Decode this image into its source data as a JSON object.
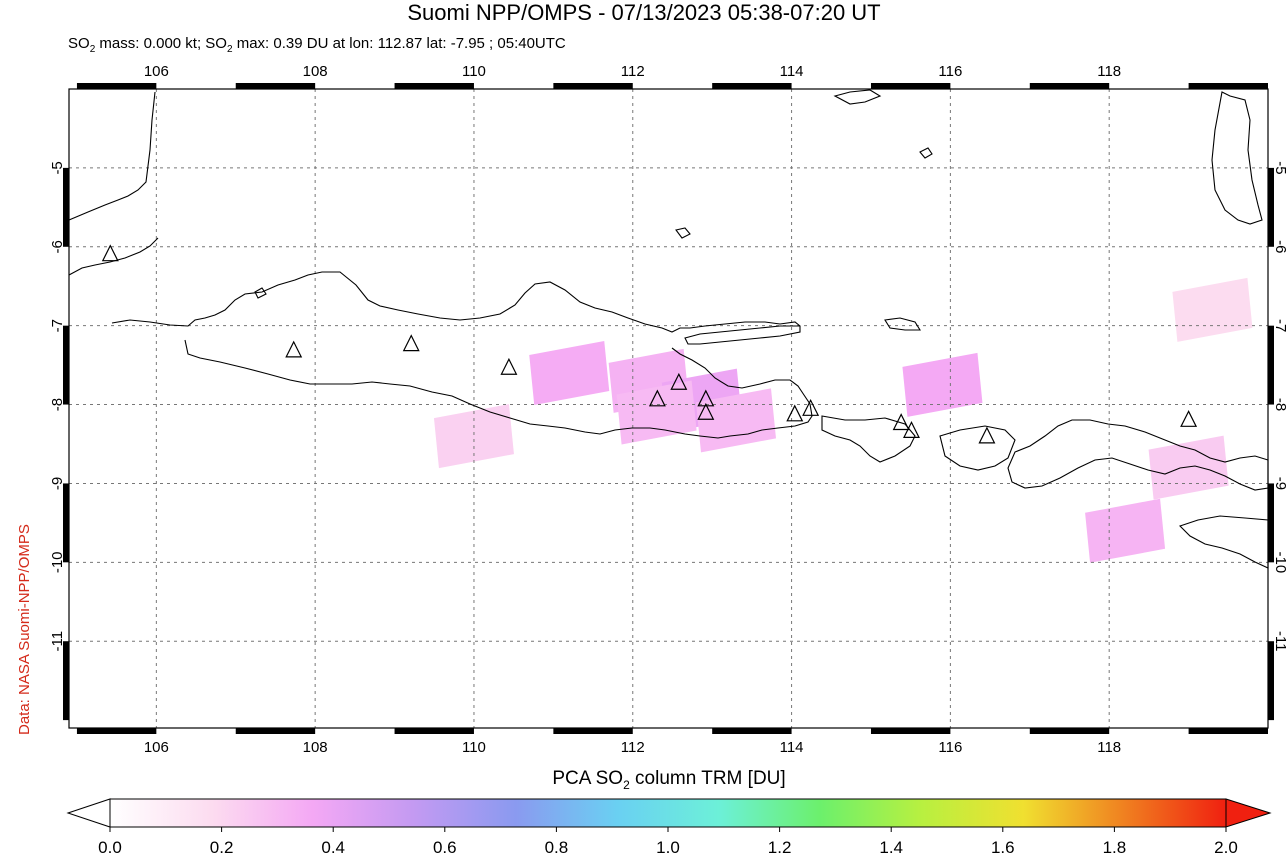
{
  "title": "Suomi NPP/OMPS - 07/13/2023 05:38-07:20 UT",
  "subtitle": {
    "part1": "SO",
    "sub1": "2",
    "part2": " mass: 0.000 kt; SO",
    "sub2": "2",
    "part3": " max: 0.39 DU at lon: 112.87 lat: -7.95 ; 05:40UTC"
  },
  "credit": "Data: NASA Suomi-NPP/OMPS",
  "colorbar_title": {
    "part1": "PCA SO",
    "sub": "2",
    "part2": " column TRM [DU]"
  },
  "map": {
    "lon_range": [
      104.9,
      120.0
    ],
    "lat_range": [
      -12.1,
      -4.0
    ],
    "x_ticks": [
      "106",
      "108",
      "110",
      "112",
      "114",
      "116",
      "118"
    ],
    "y_ticks": [
      "-5",
      "-6",
      "-7",
      "-8",
      "-9",
      "-10",
      "-11"
    ],
    "volcanoes": [
      {
        "lon": 105.42,
        "lat": -6.1
      },
      {
        "lon": 107.73,
        "lat": -7.32
      },
      {
        "lon": 109.21,
        "lat": -7.24
      },
      {
        "lon": 110.44,
        "lat": -7.54
      },
      {
        "lon": 112.31,
        "lat": -7.94
      },
      {
        "lon": 112.58,
        "lat": -7.73
      },
      {
        "lon": 112.92,
        "lat": -7.94
      },
      {
        "lon": 112.92,
        "lat": -8.11
      },
      {
        "lon": 114.04,
        "lat": -8.13
      },
      {
        "lon": 114.24,
        "lat": -8.06
      },
      {
        "lon": 115.38,
        "lat": -8.24
      },
      {
        "lon": 115.51,
        "lat": -8.34
      },
      {
        "lon": 116.46,
        "lat": -8.41
      },
      {
        "lon": 119.0,
        "lat": -8.2
      }
    ],
    "so2_cells": [
      {
        "lon": 111.2,
        "lat": -7.6,
        "value": 0.35
      },
      {
        "lon": 112.2,
        "lat": -7.7,
        "value": 0.33
      },
      {
        "lon": 112.87,
        "lat": -7.95,
        "value": 0.39
      },
      {
        "lon": 112.3,
        "lat": -8.1,
        "value": 0.3
      },
      {
        "lon": 113.3,
        "lat": -8.2,
        "value": 0.3
      },
      {
        "lon": 115.9,
        "lat": -7.75,
        "value": 0.36
      },
      {
        "lon": 118.2,
        "lat": -9.6,
        "value": 0.32
      },
      {
        "lon": 119.0,
        "lat": -8.8,
        "value": 0.24
      },
      {
        "lon": 119.3,
        "lat": -6.8,
        "value": 0.18
      },
      {
        "lon": 110.0,
        "lat": -8.4,
        "value": 0.22
      }
    ]
  },
  "colorbar": {
    "ticks": [
      "0.0",
      "0.2",
      "0.4",
      "0.6",
      "0.8",
      "1.0",
      "1.2",
      "1.4",
      "1.6",
      "1.8",
      "2.0"
    ],
    "stops": [
      "#ffffff",
      "#fcdcf0",
      "#f4a8f4",
      "#c39af2",
      "#8a9af0",
      "#6ad0f2",
      "#6cf0d8",
      "#6cf06c",
      "#b8f040",
      "#f0e030",
      "#f08020",
      "#f02010"
    ]
  }
}
